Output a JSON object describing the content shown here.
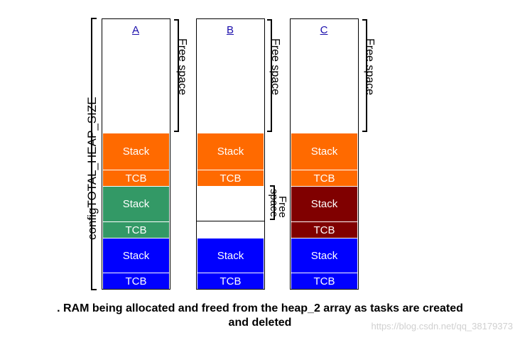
{
  "axis_label": "configTOTAL_HEAP_SIZE",
  "free_space_label": "Free space",
  "free_space_mid_label_line1": "Free",
  "free_space_mid_label_line2": "space",
  "columns": [
    {
      "title": "A",
      "blocks": [
        {
          "label": "Stack",
          "color": "#ff6a00"
        },
        {
          "label": "TCB",
          "color": "#ff6a00"
        },
        {
          "label": "Stack",
          "color": "#339966"
        },
        {
          "label": "TCB",
          "color": "#339966"
        },
        {
          "label": "Stack",
          "color": "#0000ff"
        },
        {
          "label": "TCB",
          "color": "#0000ff"
        }
      ]
    },
    {
      "title": "B",
      "blocks": [
        {
          "label": "Stack",
          "color": "#ff6a00"
        },
        {
          "label": "TCB",
          "color": "#ff6a00"
        },
        {
          "label": "Stack",
          "color": "#0000ff"
        },
        {
          "label": "TCB",
          "color": "#0000ff"
        }
      ]
    },
    {
      "title": "C",
      "blocks": [
        {
          "label": "Stack",
          "color": "#ff6a00"
        },
        {
          "label": "TCB",
          "color": "#ff6a00"
        },
        {
          "label": "Stack",
          "color": "#800000"
        },
        {
          "label": "TCB",
          "color": "#800000"
        },
        {
          "label": "Stack",
          "color": "#0000ff"
        },
        {
          "label": "TCB",
          "color": "#0000ff"
        }
      ]
    }
  ],
  "caption_line1": ". RAM being allocated and freed from the heap_2 array as tasks are created",
  "caption_line2": "and deleted",
  "watermark": "https://blog.csdn.net/qq_38179373"
}
